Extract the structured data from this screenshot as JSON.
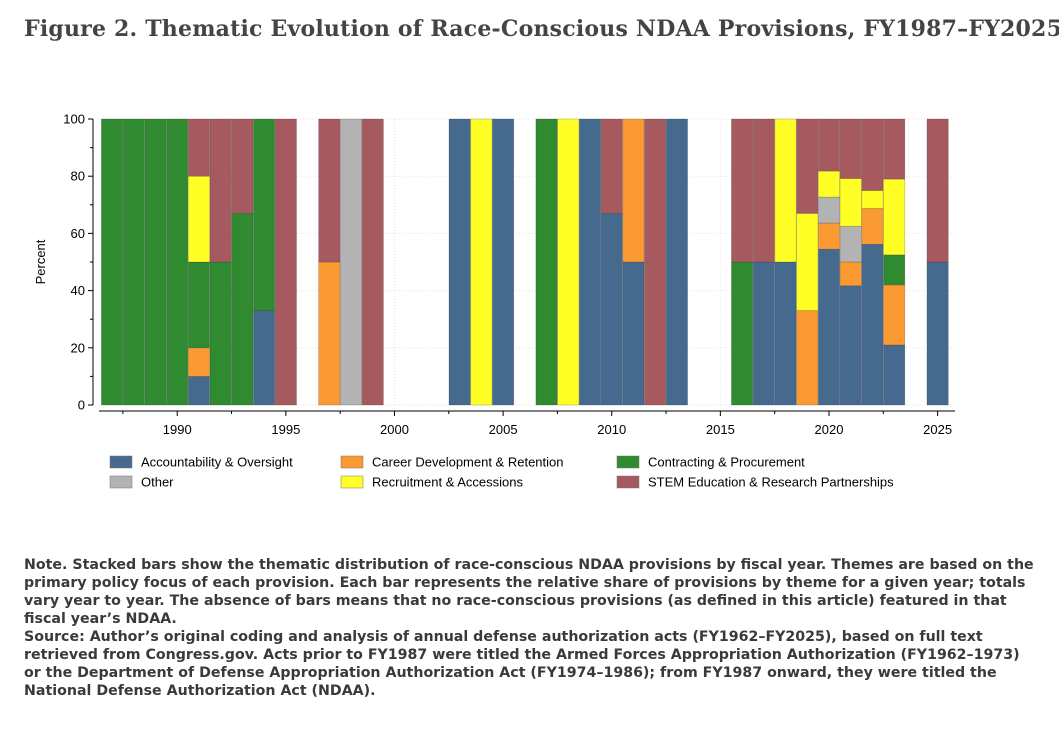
{
  "figure": {
    "title": "Figure 2. Thematic Evolution of Race-Conscious NDAA Provisions, FY1987–FY2025"
  },
  "note": {
    "lead": "Note.",
    "text": "Stacked bars show the thematic distribution of race-conscious NDAA provisions by fiscal year. Themes are based on the primary policy focus of each provision. Each bar represents the relative share of provisions by theme for a given year; totals vary year to year. The absence of bars means that no race-conscious provisions (as defined in this article) featured in that fiscal year’s NDAA.",
    "source": "Source: Author’s original coding and analysis of annual defense authorization acts (FY1962–FY2025), based on full text retrieved from Congress.gov. Acts prior to FY1987 were titled the Armed Forces Appropriation Authorization (FY1962–1973) or the Department of Defense Appropriation Authorization Act (FY1974–1986); from FY1987 onward, they were titled the National Defense Authorization Act (NDAA)."
  },
  "chart_data": {
    "type": "bar",
    "stacked": true,
    "ylabel": "Percent",
    "xlabel": "",
    "ylim": [
      0,
      100
    ],
    "yticks": [
      0,
      20,
      40,
      60,
      80,
      100
    ],
    "xlim": [
      1986.4,
      2025.8
    ],
    "xticks": [
      1990,
      1995,
      2000,
      2005,
      2010,
      2015,
      2020,
      2025
    ],
    "grid": true,
    "legend_position": "bottom",
    "themes": [
      {
        "key": "acc",
        "name": "Accountability & Oversight",
        "color": "#456a8e"
      },
      {
        "key": "car",
        "name": "Career Development & Retention",
        "color": "#fb9a33"
      },
      {
        "key": "con",
        "name": "Contracting & Procurement",
        "color": "#2f8a30"
      },
      {
        "key": "oth",
        "name": "Other",
        "color": "#b3b3b3"
      },
      {
        "key": "rec",
        "name": "Recruitment & Accessions",
        "color": "#ffff26"
      },
      {
        "key": "stem",
        "name": "STEM Education & Research Partnerships",
        "color": "#a65a60"
      }
    ],
    "stack_order": [
      "acc",
      "car",
      "oth",
      "con",
      "rec",
      "stem"
    ],
    "bars": [
      {
        "year": 1987,
        "con": 100
      },
      {
        "year": 1988,
        "con": 100
      },
      {
        "year": 1989,
        "con": 100
      },
      {
        "year": 1990,
        "con": 100
      },
      {
        "year": 1991,
        "acc": 10,
        "car": 10,
        "con": 30,
        "rec": 30,
        "stem": 20
      },
      {
        "year": 1992,
        "con": 50,
        "stem": 50
      },
      {
        "year": 1993,
        "con": 67,
        "stem": 33
      },
      {
        "year": 1994,
        "acc": 33,
        "con": 67
      },
      {
        "year": 1995,
        "stem": 100
      },
      {
        "year": 1997,
        "car": 50,
        "stem": 50
      },
      {
        "year": 1998,
        "oth": 100
      },
      {
        "year": 1999,
        "stem": 100
      },
      {
        "year": 2003,
        "acc": 100
      },
      {
        "year": 2004,
        "rec": 100
      },
      {
        "year": 2005,
        "acc": 100
      },
      {
        "year": 2007,
        "con": 100
      },
      {
        "year": 2008,
        "rec": 100
      },
      {
        "year": 2009,
        "acc": 100
      },
      {
        "year": 2010,
        "acc": 67,
        "stem": 33
      },
      {
        "year": 2011,
        "acc": 50,
        "car": 50
      },
      {
        "year": 2012,
        "stem": 100
      },
      {
        "year": 2013,
        "acc": 100
      },
      {
        "year": 2016,
        "con": 50,
        "stem": 50
      },
      {
        "year": 2017,
        "acc": 50,
        "stem": 50
      },
      {
        "year": 2018,
        "acc": 50,
        "rec": 50
      },
      {
        "year": 2019,
        "car": 33,
        "rec": 34,
        "stem": 33
      },
      {
        "year": 2020,
        "acc": 54.5,
        "car": 9.1,
        "oth": 9.1,
        "rec": 9.1,
        "stem": 18.2
      },
      {
        "year": 2021,
        "acc": 41.7,
        "car": 8.3,
        "oth": 12.5,
        "rec": 16.7,
        "stem": 20.8
      },
      {
        "year": 2022,
        "acc": 56.2,
        "car": 12.5,
        "rec": 6.3,
        "stem": 25
      },
      {
        "year": 2023,
        "acc": 21,
        "car": 21,
        "con": 10.5,
        "rec": 26.5,
        "stem": 21
      },
      {
        "year": 2025,
        "acc": 50,
        "stem": 50
      }
    ]
  }
}
